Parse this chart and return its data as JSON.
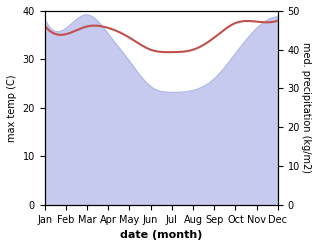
{
  "months": [
    "Jan",
    "Feb",
    "Mar",
    "Apr",
    "May",
    "Jun",
    "Jul",
    "Aug",
    "Sep",
    "Oct",
    "Nov",
    "Dec"
  ],
  "temp": [
    37.0,
    35.2,
    36.8,
    36.5,
    34.5,
    32.0,
    31.5,
    32.0,
    34.5,
    37.5,
    37.8,
    38.0
  ],
  "precip_right": [
    48.0,
    45.5,
    49.0,
    44.0,
    37.0,
    30.5,
    29.0,
    29.5,
    32.5,
    39.0,
    45.5,
    48.5
  ],
  "temp_color": "#c0504d",
  "precip_fill_color": "#c5caee",
  "precip_edge_color": "#b0b8e8",
  "background_color": "#ffffff",
  "xlabel": "date (month)",
  "ylabel_left": "max temp (C)",
  "ylabel_right": "med. precipitation (kg/m2)",
  "ylim_left": [
    0,
    40
  ],
  "ylim_right": [
    0,
    50
  ],
  "yticks_left": [
    0,
    10,
    20,
    30,
    40
  ],
  "yticks_right": [
    0,
    10,
    20,
    30,
    40,
    50
  ]
}
